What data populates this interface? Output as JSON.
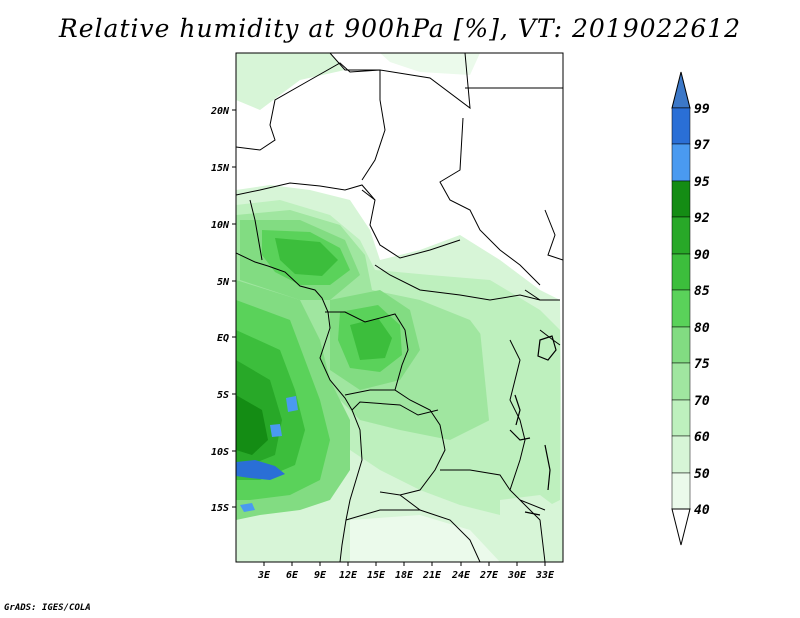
{
  "title": "Relative humidity at 900hPa [%], VT: 2019022612",
  "footer": "GrADS: IGES/COLA",
  "map": {
    "lat_labels": [
      "20N",
      "15N",
      "10N",
      "5N",
      "EQ",
      "5S",
      "10S",
      "15S"
    ],
    "lon_labels": [
      "3E",
      "6E",
      "9E",
      "12E",
      "15E",
      "18E",
      "21E",
      "24E",
      "27E",
      "30E",
      "33E"
    ]
  },
  "colorbar": {
    "levels": [
      "99",
      "97",
      "95",
      "92",
      "90",
      "85",
      "80",
      "75",
      "70",
      "60",
      "50",
      "40"
    ],
    "colors": {
      "above_99": "#3c78c8",
      "97_99": "#2a6fd6",
      "95_97": "#4a9af0",
      "92_95": "#148c14",
      "90_92": "#28a828",
      "85_90": "#3cbe3c",
      "80_85": "#5ad25a",
      "75_80": "#82dc82",
      "70_75": "#a0e6a0",
      "60_70": "#bef0be",
      "50_60": "#d7f5d7",
      "40_50": "#ebfaeb",
      "below_40": "#ffffff"
    }
  }
}
